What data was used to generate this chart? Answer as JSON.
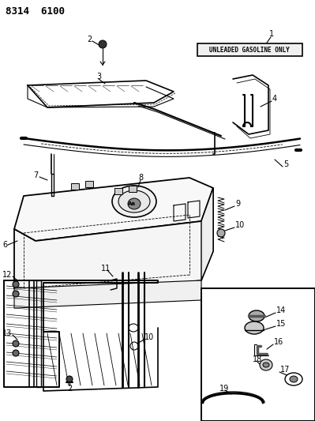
{
  "title": "8314  6100",
  "bg": "#ffffff",
  "lc": "#000000",
  "box_label": "UNLEADED GASOLINE ONLY",
  "fig_w": 3.99,
  "fig_h": 5.33,
  "dpi": 100
}
